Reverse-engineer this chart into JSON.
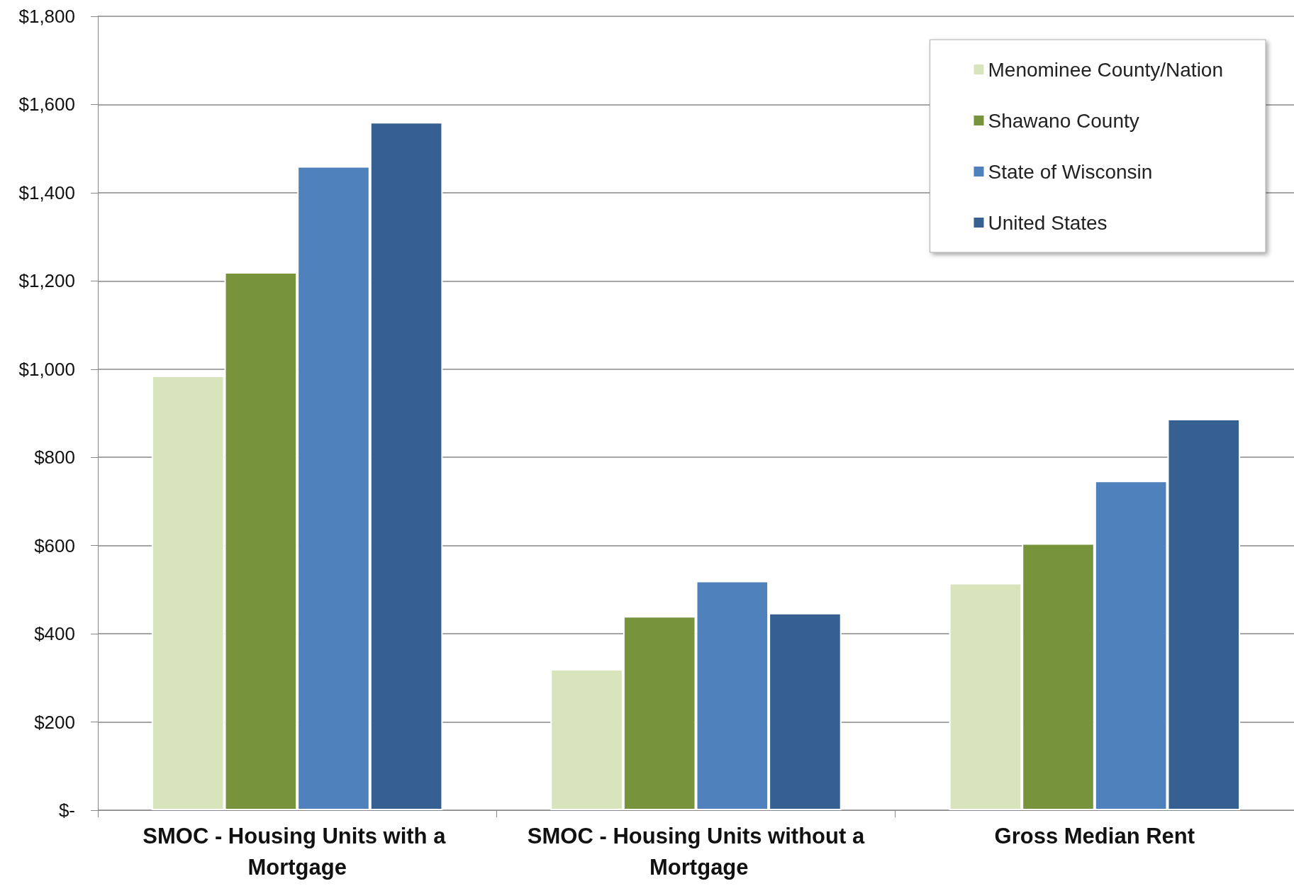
{
  "chart_data": {
    "type": "bar",
    "categories": [
      "SMOC - Housing Units with a Mortgage",
      "SMOC - Housing Units without a Mortgage",
      "Gross Median Rent"
    ],
    "series": [
      {
        "name": "Menominee County/Nation",
        "color": "#d8e4bc",
        "values": [
          985,
          320,
          515
        ]
      },
      {
        "name": "Shawano County",
        "color": "#77933c",
        "values": [
          1220,
          440,
          605
        ]
      },
      {
        "name": "State of Wisconsin",
        "color": "#4f81bd",
        "values": [
          1460,
          520,
          747
        ]
      },
      {
        "name": "United States",
        "color": "#366092",
        "values": [
          1560,
          447,
          887
        ]
      }
    ],
    "ylim": [
      0,
      1800
    ],
    "yticks": [
      {
        "value": 0,
        "label": "$-"
      },
      {
        "value": 200,
        "label": "$200"
      },
      {
        "value": 400,
        "label": "$400"
      },
      {
        "value": 600,
        "label": "$600"
      },
      {
        "value": 800,
        "label": "$800"
      },
      {
        "value": 1000,
        "label": "$1,000"
      },
      {
        "value": 1200,
        "label": "$1,200"
      },
      {
        "value": 1400,
        "label": "$1,400"
      },
      {
        "value": 1600,
        "label": "$1,600"
      },
      {
        "value": 1800,
        "label": "$1,800"
      }
    ],
    "grid": "y",
    "legend": "top right"
  }
}
